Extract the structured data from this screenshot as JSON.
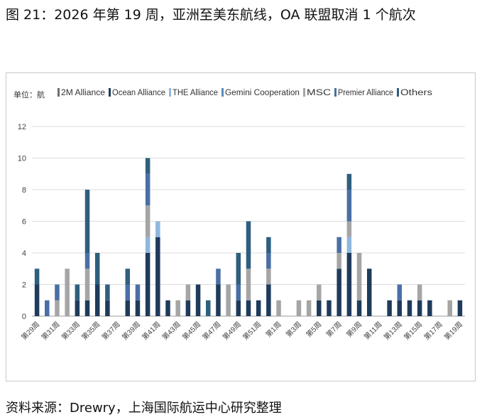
{
  "figure_title": "图 21：2026 年第 19 周，亚洲至美东航线，OA 联盟取消 1 个航次",
  "source": "资料来源：Drewry，上海国际航运中心研究整理",
  "colors": {
    "2M Alliance": "#6e6e6e",
    "Ocean Alliance": "#1f3b5c",
    "THE Alliance": "#8fb7de",
    "Gemini Cooperation": "#5b8db8",
    "MSC": "#a5a5a5",
    "Premier Alliance": "#4a6fa5",
    "Others": "#2e5f7e"
  },
  "chart_data": {
    "type": "bar",
    "stacked": true,
    "unit_label": "单位：航",
    "ylim": [
      0,
      12
    ],
    "yticks": [
      0,
      2,
      4,
      6,
      8,
      10,
      12
    ],
    "grid": true,
    "legend_position": "top",
    "categories": [
      "第29周",
      "第30周",
      "第31周",
      "第32周",
      "第33周",
      "第34周",
      "第35周",
      "第36周",
      "第37周",
      "第38周",
      "第39周",
      "第40周",
      "第41周",
      "第42周",
      "第43周",
      "第44周",
      "第45周",
      "第46周",
      "第47周",
      "第48周",
      "第49周",
      "第50周",
      "第51周",
      "第52周",
      "第1周",
      "第2周",
      "第3周",
      "第4周",
      "第5周",
      "第6周",
      "第7周",
      "第8周",
      "第9周",
      "第10周",
      "第11周",
      "第12周",
      "第13周",
      "第14周",
      "第15周",
      "第16周",
      "第17周",
      "第18周",
      "第19周"
    ],
    "xtick_labels": [
      "第29周",
      "第31周",
      "第33周",
      "第35周",
      "第37周",
      "第39周",
      "第41周",
      "第43周",
      "第45周",
      "第47周",
      "第49周",
      "第51周",
      "第1周",
      "第3周",
      "第5周",
      "第7周",
      "第9周",
      "第11周",
      "第13周",
      "第15周",
      "第17周",
      "第19周"
    ],
    "series": [
      {
        "name": "2M Alliance",
        "values": [
          0,
          0,
          0,
          0,
          0,
          0,
          0,
          0,
          0,
          0,
          0,
          0,
          0,
          0,
          0,
          0,
          0,
          0,
          0,
          0,
          0,
          0,
          0,
          0,
          0,
          0,
          0,
          0,
          0,
          0,
          0,
          0,
          0,
          0,
          0,
          0,
          0,
          0,
          0,
          0,
          0,
          0,
          0
        ]
      },
      {
        "name": "Ocean Alliance",
        "values": [
          2,
          0,
          0,
          0,
          1,
          1,
          2,
          1,
          0,
          1,
          1,
          4,
          5,
          1,
          0,
          1,
          2,
          0,
          2,
          0,
          1,
          1,
          1,
          2,
          0,
          0,
          0,
          0,
          1,
          1,
          3,
          4,
          1,
          3,
          0,
          1,
          1,
          1,
          1,
          1,
          0,
          0,
          1
        ]
      },
      {
        "name": "THE Alliance",
        "values": [
          0,
          0,
          0,
          0,
          0,
          0,
          0,
          0,
          0,
          0,
          0,
          1,
          1,
          0,
          0,
          0,
          0,
          0,
          0,
          0,
          0,
          0,
          0,
          0,
          0,
          0,
          0,
          0,
          0,
          0,
          0,
          1,
          0,
          0,
          0,
          0,
          0,
          0,
          0,
          0,
          0,
          0,
          0
        ]
      },
      {
        "name": "Gemini Cooperation",
        "values": [
          0,
          0,
          0,
          0,
          0,
          0,
          0,
          0,
          0,
          0,
          0,
          0,
          0,
          0,
          0,
          0,
          0,
          0,
          0,
          0,
          0,
          0,
          0,
          0,
          0,
          0,
          0,
          0,
          0,
          0,
          0,
          0,
          0,
          0,
          0,
          0,
          0,
          0,
          0,
          0,
          0,
          0,
          0
        ]
      },
      {
        "name": "MSC",
        "values": [
          0,
          0,
          1,
          3,
          0,
          2,
          0,
          0,
          0,
          0,
          0,
          2,
          0,
          0,
          1,
          1,
          0,
          0,
          0,
          2,
          0,
          2,
          0,
          1,
          1,
          0,
          1,
          1,
          1,
          0,
          1,
          1,
          3,
          0,
          0,
          0,
          0,
          0,
          1,
          0,
          0,
          1,
          0
        ]
      },
      {
        "name": "Premier Alliance",
        "values": [
          0,
          1,
          1,
          0,
          0,
          1,
          0,
          0,
          0,
          1,
          1,
          2,
          0,
          0,
          0,
          0,
          0,
          0,
          1,
          0,
          1,
          0,
          0,
          1,
          0,
          0,
          0,
          0,
          0,
          0,
          1,
          2,
          0,
          0,
          0,
          0,
          1,
          0,
          0,
          0,
          0,
          0,
          0
        ]
      },
      {
        "name": "Others",
        "values": [
          1,
          0,
          0,
          0,
          1,
          4,
          2,
          1,
          0,
          1,
          0,
          1,
          0,
          0,
          0,
          0,
          0,
          1,
          0,
          0,
          2,
          3,
          0,
          1,
          0,
          0,
          0,
          0,
          0,
          0,
          0,
          1,
          0,
          0,
          0,
          0,
          0,
          0,
          0,
          0,
          0,
          0,
          0
        ]
      }
    ]
  }
}
